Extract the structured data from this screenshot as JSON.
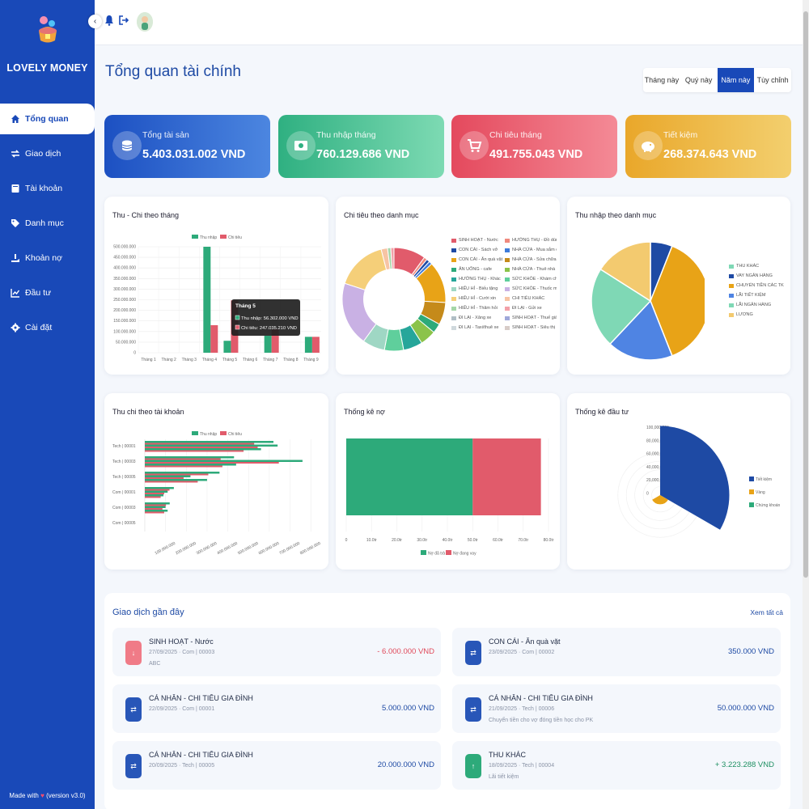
{
  "app": {
    "name": "LOVELY MONEY",
    "footer": "Made with",
    "version": "(version v3.0)"
  },
  "sidebar": {
    "items": [
      {
        "label": "Tổng quan",
        "icon": "home-icon",
        "active": true
      },
      {
        "label": "Giao dịch",
        "icon": "exchange-icon"
      },
      {
        "label": "Tài khoản",
        "icon": "wallet-icon"
      },
      {
        "label": "Danh mục",
        "icon": "tag-icon"
      },
      {
        "label": "Khoản nợ",
        "icon": "hand-money-icon"
      },
      {
        "label": "Đầu tư",
        "icon": "chart-line-icon"
      },
      {
        "label": "Cài đặt",
        "icon": "gear-icon"
      }
    ]
  },
  "page": {
    "title": "Tổng quan tài chính"
  },
  "period": {
    "options": [
      "Tháng này",
      "Quý này",
      "Năm này",
      "Tùy chỉnh"
    ],
    "selected": "Năm này"
  },
  "kpis": [
    {
      "label": "Tổng tài sản",
      "value": "5.403.031.002 VND",
      "color": "#1f55c4",
      "icon": "coins-icon"
    },
    {
      "label": "Thu nhập tháng",
      "value": "760.129.686 VND",
      "color": "#3fbf94",
      "icon": "money-bill-icon"
    },
    {
      "label": "Chi tiêu tháng",
      "value": "491.755.043 VND",
      "color": "#ea5d6e",
      "icon": "cart-icon"
    },
    {
      "label": "Tiết kiệm",
      "value": "268.374.643 VND",
      "color": "#ecb23a",
      "icon": "piggy-bank-icon"
    }
  ],
  "charts": {
    "monthly": {
      "title": "Thu - Chi theo tháng",
      "type": "bar",
      "legend": [
        "Thu nhập",
        "Chi tiêu"
      ],
      "yticks": [
        "500.000.000",
        "450.000.000",
        "400.000.000",
        "350.000.000",
        "300.000.000",
        "250.000.000",
        "200.000.000",
        "150.000.000",
        "100.000.000",
        "50.000.000",
        "0"
      ],
      "categories": [
        "Tháng 1",
        "Tháng 2",
        "Tháng 3",
        "Tháng 4",
        "Tháng 5",
        "Tháng 6",
        "Tháng 7",
        "Tháng 8",
        "Tháng 9"
      ],
      "series": [
        {
          "name": "Thu nhập",
          "color": "#2daa7a",
          "values": [
            0,
            0,
            0,
            500000000,
            56302000,
            0,
            80000000,
            0,
            75000000
          ]
        },
        {
          "name": "Chi tiêu",
          "color": "#e15b6b",
          "values": [
            0,
            0,
            0,
            130000000,
            247035210,
            0,
            110000000,
            0,
            75000000
          ]
        }
      ],
      "ylim": [
        0,
        500000000
      ],
      "tooltip": {
        "title": "Tháng 5",
        "income": "Thu nhập: 56.302.000 VND",
        "expense": "Chi tiêu: 247.035.210 VND"
      }
    },
    "expense_cat": {
      "title": "Chi tiêu theo danh mục",
      "type": "pie",
      "legend": [
        {
          "label": "SINH HOẠT - Nước",
          "color": "#e15b6b"
        },
        {
          "label": "HƯỞNG THỤ - Đồ dùng",
          "color": "#f08a7e"
        },
        {
          "label": "CON CÁI - Sách vở",
          "color": "#1e4aa4"
        },
        {
          "label": "NHÀ CỬA - Mua sắm đ",
          "color": "#3e7bd9"
        },
        {
          "label": "CON CÁI - Ăn quà vặt",
          "color": "#e8a317"
        },
        {
          "label": "NHÀ CỬA - Sửa chữa n",
          "color": "#c58a1a"
        },
        {
          "label": "ĂN UỐNG - cafe",
          "color": "#2daa7a"
        },
        {
          "label": "NHÀ CỬA - Thuê nhà",
          "color": "#8bc34a"
        },
        {
          "label": "HƯỞNG THỤ - Khác",
          "color": "#26a69a"
        },
        {
          "label": "SỨC KHỎE - Khám chữ",
          "color": "#5fcf9c"
        },
        {
          "label": "HIẾU HỈ - Biếu tặng",
          "color": "#9fd7c4"
        },
        {
          "label": "SỨC KHỎE - Thuốc me",
          "color": "#c9b1e4"
        },
        {
          "label": "HIẾU HỈ - Cưới xin",
          "color": "#f5cf79"
        },
        {
          "label": "CHI TIÊU KHÁC",
          "color": "#f7c4a4"
        },
        {
          "label": "HIẾU HỈ - Thăm hỏi",
          "color": "#a5d6a7"
        },
        {
          "label": "ĐI LẠI - Gửi xe",
          "color": "#f3a0a8"
        },
        {
          "label": "ĐI LẠI - Xăng xe",
          "color": "#b0bec5"
        },
        {
          "label": "SINH HOẠT - Thuế giày",
          "color": "#9fa8da"
        },
        {
          "label": "ĐI LẠI - Taxi/thuê xe",
          "color": "#cfd8dc"
        },
        {
          "label": "SINH HOẠT - Siêu thị",
          "color": "#d7ccc8"
        }
      ],
      "values": [
        10,
        1,
        1,
        1,
        13,
        7,
        3,
        5,
        6,
        6,
        7,
        20,
        16,
        2,
        1,
        1
      ]
    },
    "income_cat": {
      "title": "Thu nhập theo danh mục",
      "type": "pie",
      "legend": [
        {
          "label": "THU KHÁC",
          "color": "#7fd8b5"
        },
        {
          "label": "VAY NGÂN HÀNG",
          "color": "#1e4aa4"
        },
        {
          "label": "CHUYỂN TIỀN CÁC TK",
          "color": "#e8a317"
        },
        {
          "label": "LÃI TIẾT KIỆM",
          "color": "#4f84e3"
        },
        {
          "label": "LÃI NGÂN HÀNG",
          "color": "#7fd8b5"
        },
        {
          "label": "LƯƠNG",
          "color": "#f3ca6f"
        }
      ],
      "slices": [
        {
          "value": 6,
          "color": "#1e4aa4"
        },
        {
          "value": 38,
          "color": "#e8a317"
        },
        {
          "value": 18,
          "color": "#4f84e3"
        },
        {
          "value": 22,
          "color": "#7fd8b5"
        },
        {
          "value": 16,
          "color": "#f3ca6f"
        }
      ]
    },
    "by_account": {
      "title": "Thu chi theo tài khoản",
      "type": "bar",
      "legend": [
        "Thu nhập",
        "Chi tiêu"
      ],
      "categories": [
        "Tech | 00001",
        "Tech | 00003",
        "Tech | 00005",
        "Com | 00001",
        "Com | 00003",
        "Com | 00005"
      ],
      "xticks": [
        "100.000.000",
        "200.000.000",
        "300.000.000",
        "400.000.000",
        "500.000.000",
        "600.000.000",
        "700.000.000",
        "800.000.000"
      ],
      "pairs": [
        [
          620000000,
          640000000,
          560000000
        ],
        [
          430000000,
          760000000,
          440000000
        ],
        [
          360000000,
          220000000,
          300000000
        ],
        [
          140000000,
          110000000,
          90000000
        ],
        [
          120000000,
          100000000,
          110000000
        ],
        [
          0,
          0,
          0
        ]
      ],
      "xlim": [
        0,
        850000000
      ]
    },
    "debt": {
      "title": "Thống kê nợ",
      "type": "bar",
      "xticks": [
        "0",
        "10.0tr",
        "20.0tr",
        "30.0tr",
        "40.0tr",
        "50.0tr",
        "60.0tr",
        "70.0tr",
        "80.0tr"
      ],
      "legend": [
        "Nợ đã trả",
        "Nợ đang vay"
      ],
      "paid": 50000000,
      "owed": 27000000,
      "xlim": [
        0,
        80000000
      ]
    },
    "invest": {
      "title": "Thống kê đầu tư",
      "type": "pie",
      "ticks": [
        "100,000,000",
        "80,000,000",
        "60,000,000",
        "40,000,000",
        "20,000,000",
        "0"
      ],
      "legend": [
        {
          "label": "Tiết kiệm",
          "color": "#1e4aa4"
        },
        {
          "label": "Vàng",
          "color": "#e8a317"
        },
        {
          "label": "Chứng khoán",
          "color": "#2daa7a"
        }
      ],
      "values": [
        90000000,
        12000000,
        0
      ]
    }
  },
  "recent": {
    "title": "Giao dịch gần đây",
    "view_all": "Xem tất cả",
    "items": [
      {
        "category": "SINH HOẠT - Nước",
        "meta": "27/09/2025 · Com | 00003",
        "note": "ABC",
        "amount": "- 6.000.000 VND",
        "type": "expense"
      },
      {
        "category": "CON CÁI - Ăn quà vặt",
        "meta": "23/09/2025 · Com | 00002",
        "note": "",
        "amount": "350.000 VND",
        "type": "transfer"
      },
      {
        "category": "CÁ NHÂN - CHI TIÊU GIA ĐÌNH",
        "meta": "22/09/2025 · Com | 00001",
        "note": "",
        "amount": "5.000.000 VND",
        "type": "transfer"
      },
      {
        "category": "CÁ NHÂN - CHI TIÊU GIA ĐÌNH",
        "meta": "21/09/2025 · Tech | 00006",
        "note": "Chuyển tiền cho vợ đóng tiền học cho PK",
        "amount": "50.000.000 VND",
        "type": "transfer"
      },
      {
        "category": "CÁ NHÂN - CHI TIÊU GIA ĐÌNH",
        "meta": "20/09/2025 · Tech | 00005",
        "note": "",
        "amount": "20.000.000 VND",
        "type": "transfer"
      },
      {
        "category": "THU KHÁC",
        "meta": "18/09/2025 · Tech | 00004",
        "note": "Lãi tiết kiệm",
        "amount": "+ 3.223.288 VND",
        "type": "income"
      }
    ]
  }
}
